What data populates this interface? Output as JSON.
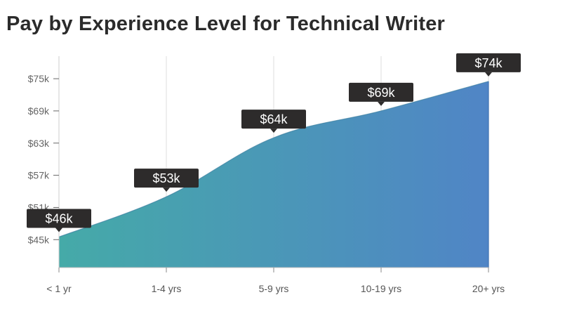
{
  "title": "Pay by Experience Level for Technical Writer",
  "colors": {
    "area_start": "#45aaa8",
    "area_end": "#5085c6",
    "label_bg": "#2d2b2b",
    "grid": "#dcdcdc"
  },
  "chart_data": {
    "type": "area",
    "title": "Pay by Experience Level for Technical Writer",
    "categories": [
      "< 1 yr",
      "1-4 yrs",
      "5-9 yrs",
      "10-19 yrs",
      "20+ yrs"
    ],
    "values": [
      45500,
      53000,
      64000,
      69000,
      74500
    ],
    "data_labels": [
      "$46k",
      "$53k",
      "$64k",
      "$69k",
      "$74k"
    ],
    "yticks": [
      45000,
      51000,
      57000,
      63000,
      69000,
      75000
    ],
    "ytick_labels": [
      "$45k",
      "$51k",
      "$57k",
      "$63k",
      "$69k",
      "$75k"
    ],
    "ylim": [
      39800,
      79200
    ],
    "xlabel": "",
    "ylabel": "",
    "grid": "vertical"
  }
}
